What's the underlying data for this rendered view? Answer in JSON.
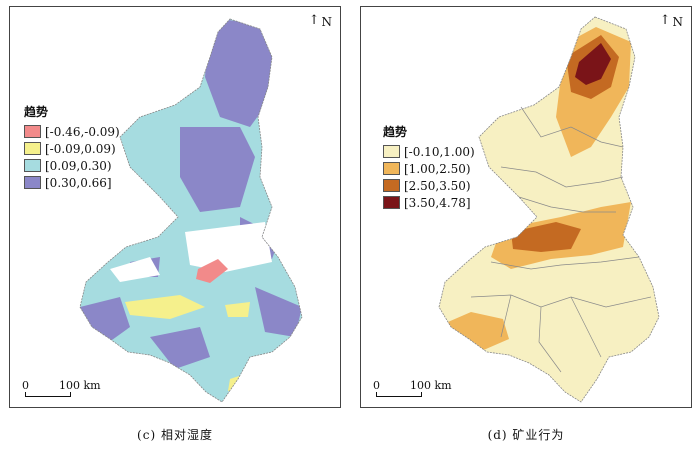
{
  "panel_c": {
    "north_label": "N",
    "legend": {
      "title": "趋势",
      "items": [
        {
          "label": "[-0.46,-0.09)",
          "color": "#f28a8a"
        },
        {
          "label": "[-0.09,0.09)",
          "color": "#f5f08c"
        },
        {
          "label": "[0.09,0.30)",
          "color": "#a6dce0"
        },
        {
          "label": "[0.30,0.66]",
          "color": "#8b87c8"
        }
      ]
    },
    "scale": {
      "start": "0",
      "end": "100 km"
    },
    "caption": "(c) 相对湿度"
  },
  "panel_d": {
    "north_label": "N",
    "legend": {
      "title": "趋势",
      "items": [
        {
          "label": "[-0.10,1.00)",
          "color": "#f7f0c2"
        },
        {
          "label": "[1.00,2.50)",
          "color": "#f0b65a"
        },
        {
          "label": "[2.50,3.50)",
          "color": "#c46a22"
        },
        {
          "label": "[3.50,4.78]",
          "color": "#7a1418"
        }
      ]
    },
    "scale": {
      "start": "0",
      "end": "100 km"
    },
    "caption": "(d) 矿业行为"
  }
}
